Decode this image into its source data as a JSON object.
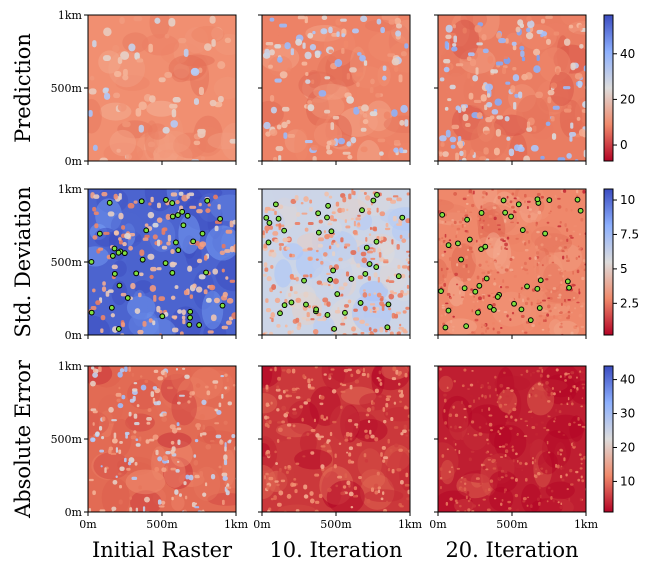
{
  "chart_data": {
    "type": "heatmap",
    "layout": "3x3 grid of raster maps with shared per-row colorbars",
    "rows": [
      {
        "label": "Prediction",
        "colorbar": {
          "ticks": [
            0,
            20,
            40
          ],
          "range": [
            -7,
            57
          ]
        }
      },
      {
        "label": "Std. Deviation",
        "colorbar": {
          "ticks": [
            2.5,
            5.0,
            7.5,
            10.0
          ],
          "range": [
            0.2,
            10.8
          ]
        }
      },
      {
        "label": "Absolute Error",
        "colorbar": {
          "ticks": [
            10,
            20,
            30,
            40
          ],
          "range": [
            1,
            44
          ]
        }
      }
    ],
    "columns": [
      "Initial Raster",
      "10. Iteration",
      "20. Iteration"
    ],
    "x_ticks": [
      "0m",
      "500m",
      "1km"
    ],
    "y_ticks": [
      "0m",
      "500m",
      "1km"
    ],
    "colormap": "coolwarm_r",
    "colors": {
      "low": "#b40426",
      "mid": "#dddcdc",
      "high": "#3b4cc0"
    },
    "markers": {
      "shape": "circle",
      "fill": "#7fe040",
      "stroke": "#000000",
      "note": "sample locations shown on Std. Deviation row"
    }
  }
}
